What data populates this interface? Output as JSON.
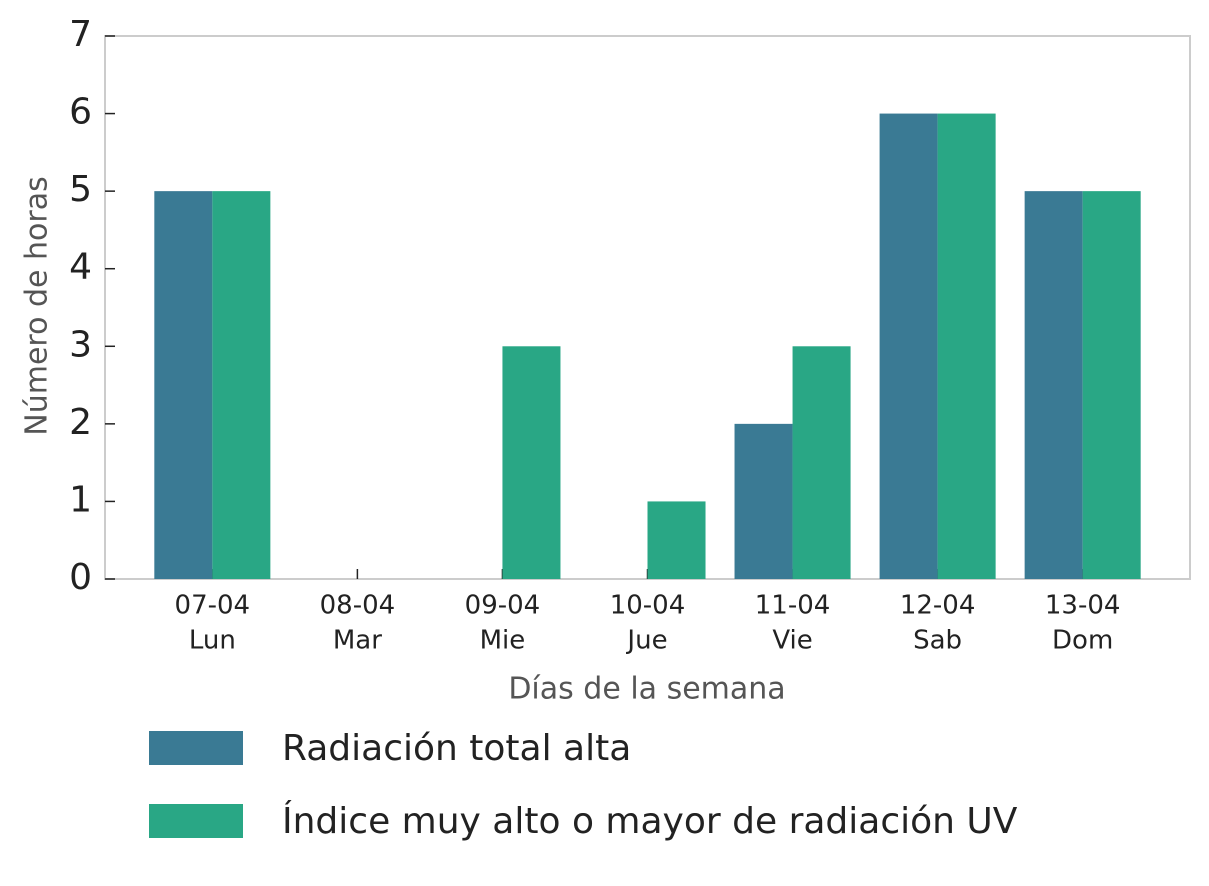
{
  "chart_data": {
    "type": "bar",
    "x_label": "Días de la semana",
    "y_label": "Número de horas",
    "categories": [
      [
        "07-04",
        "Lun"
      ],
      [
        "08-04",
        "Mar"
      ],
      [
        "09-04",
        "Mie"
      ],
      [
        "10-04",
        "Jue"
      ],
      [
        "11-04",
        "Vie"
      ],
      [
        "12-04",
        "Sab"
      ],
      [
        "13-04",
        "Dom"
      ]
    ],
    "series": [
      {
        "name": "Radiación total alta",
        "color": "#3a7a94",
        "values": [
          5,
          0,
          0,
          0,
          2,
          6,
          5
        ]
      },
      {
        "name": "Índice muy alto o mayor de radiación UV",
        "color": "#29a785",
        "values": [
          5,
          0,
          3,
          1,
          3,
          6,
          5
        ]
      }
    ],
    "ylim": [
      0,
      7
    ],
    "yticks": [
      0,
      1,
      2,
      3,
      4,
      5,
      6,
      7
    ],
    "grid": false
  }
}
